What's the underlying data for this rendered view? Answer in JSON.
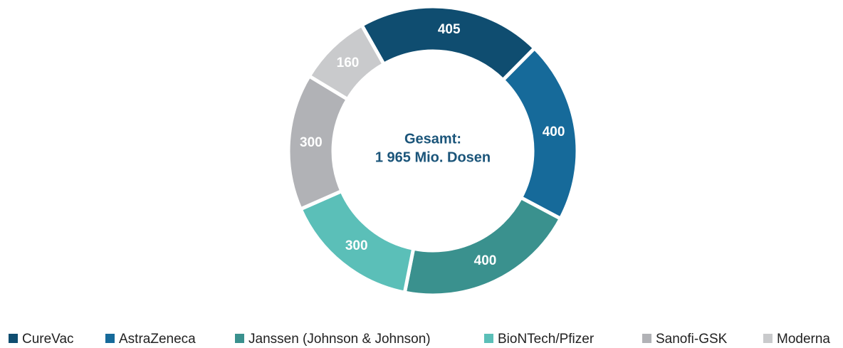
{
  "chart_data": {
    "type": "pie",
    "donut": true,
    "center_text": [
      "Gesamt:",
      "1 965 Mio. Dosen"
    ],
    "categories": [
      "CureVac",
      "AstraZeneca",
      "Janssen (Johnson & Johnson)",
      "BioNTech/Pfizer",
      "Sanofi-GSK",
      "Moderna"
    ],
    "values": [
      405,
      400,
      400,
      300,
      300,
      160
    ],
    "colors": [
      "#0f4d70",
      "#166a9a",
      "#3a918e",
      "#5bbfb8",
      "#b1b2b6",
      "#c9cacc"
    ],
    "legend": "bottom"
  }
}
